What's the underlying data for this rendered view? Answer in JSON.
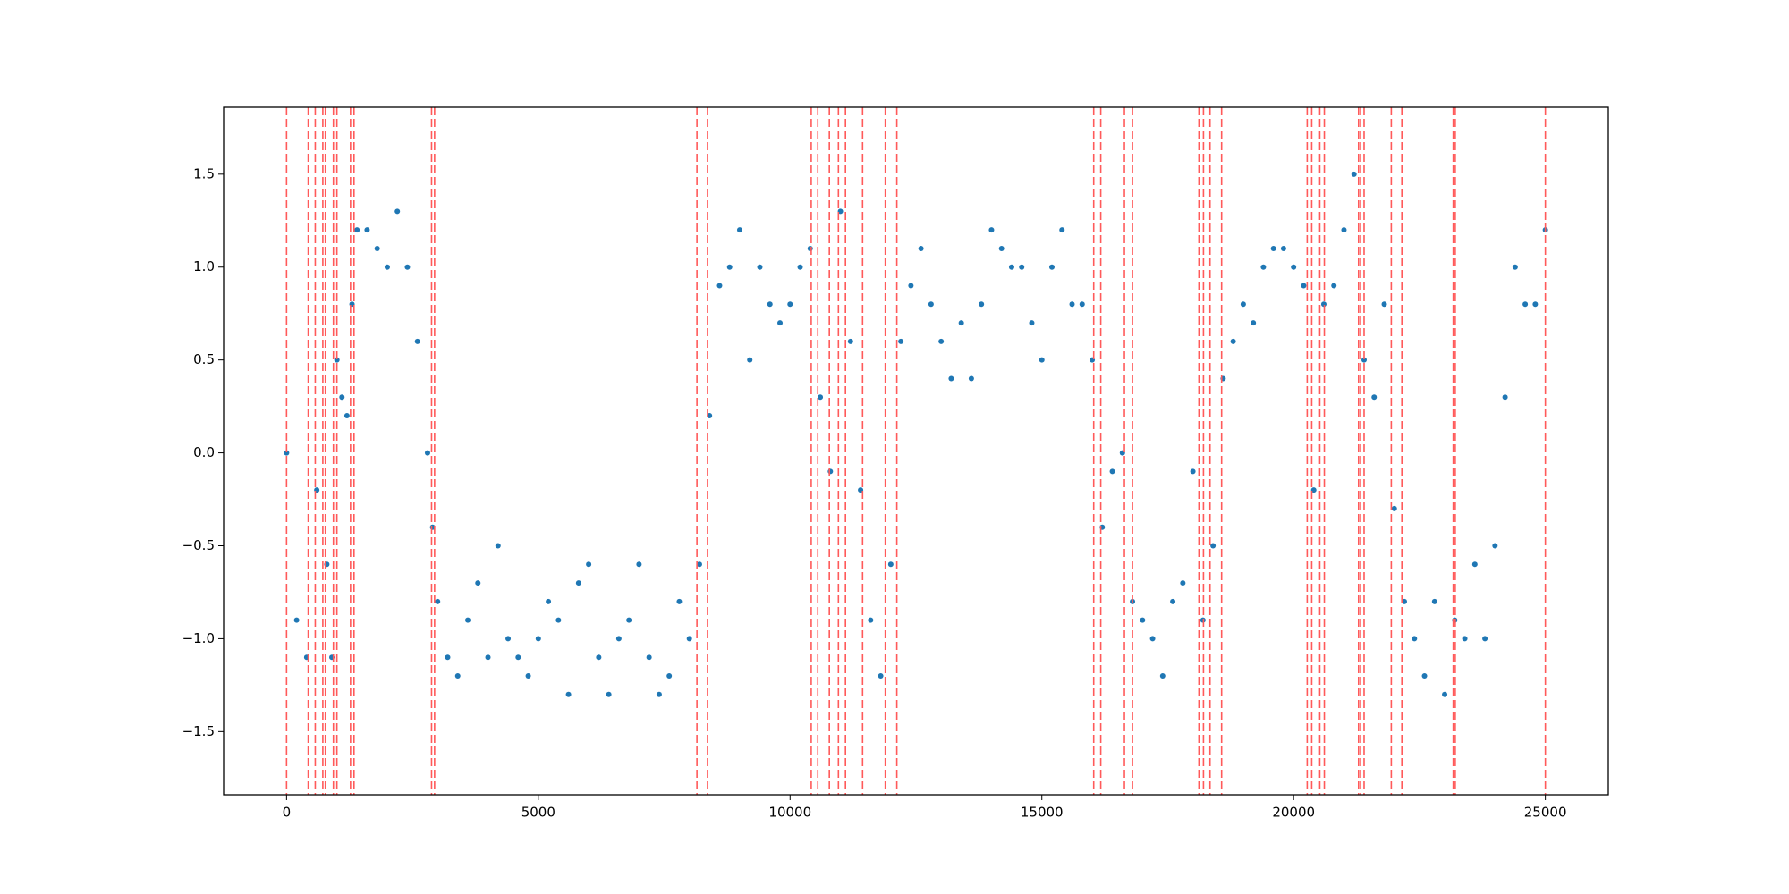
{
  "chart_data": {
    "type": "scatter",
    "x": [
      0,
      200,
      400,
      600,
      800,
      900,
      1000,
      1100,
      1200,
      1300,
      1400,
      1600,
      1800,
      2000,
      2200,
      2400,
      2600,
      2800,
      2900,
      3000,
      3200,
      3400,
      3600,
      3800,
      4000,
      4200,
      4400,
      4600,
      4800,
      5000,
      5200,
      5400,
      5600,
      5800,
      6000,
      6200,
      6400,
      6600,
      6800,
      7000,
      7200,
      7400,
      7600,
      7800,
      8000,
      8200,
      8400,
      8600,
      8800,
      9000,
      9200,
      9400,
      9600,
      9800,
      10000,
      10200,
      10400,
      10600,
      10800,
      11000,
      11200,
      11400,
      11600,
      11800,
      12000,
      12200,
      12400,
      12600,
      12800,
      13000,
      13200,
      13400,
      13600,
      13800,
      14000,
      14200,
      14400,
      14600,
      14800,
      15000,
      15200,
      15400,
      15600,
      15800,
      16000,
      16200,
      16400,
      16600,
      16800,
      17000,
      17200,
      17400,
      17600,
      17800,
      18000,
      18200,
      18400,
      18600,
      18800,
      19000,
      19200,
      19400,
      19600,
      19800,
      20000,
      20200,
      20400,
      20600,
      20800,
      21000,
      21200,
      21400,
      21600,
      21800,
      22000,
      22200,
      22400,
      22600,
      22800,
      23000,
      23200,
      23400,
      23600,
      23800,
      24000,
      24200,
      24400,
      24600,
      24800,
      25000
    ],
    "series": [
      {
        "color": "#1f77b4",
        "values": [
          0.0,
          -0.9,
          -1.1,
          -0.2,
          -0.6,
          -1.1,
          0.5,
          0.3,
          0.2,
          0.8,
          1.2,
          1.2,
          1.1,
          1.0,
          1.3,
          1.0,
          0.6,
          0.0,
          -0.4,
          -0.8,
          -1.1,
          -1.2,
          -0.9,
          -0.7,
          -1.1,
          -0.5,
          -1.0,
          -1.1,
          -1.2,
          -1.0,
          -0.8,
          -0.9,
          -1.3,
          -0.7,
          -0.6,
          -1.1,
          -1.3,
          -1.0,
          -0.9,
          -0.6,
          -1.1,
          -1.3,
          -1.2,
          -0.8,
          -1.0,
          -0.6,
          0.2,
          0.9,
          1.0,
          1.2,
          0.5,
          1.0,
          0.8,
          0.7,
          0.8,
          1.0,
          1.1,
          0.3,
          -0.1,
          1.3,
          0.6,
          -0.2,
          -0.9,
          -1.2,
          -0.6,
          0.6,
          0.9,
          1.1,
          0.8,
          0.6,
          0.4,
          0.7,
          0.4,
          0.8,
          1.2,
          1.1,
          1.0,
          1.0,
          0.7,
          0.5,
          1.0,
          1.2,
          0.8,
          0.8,
          0.5,
          -0.4,
          -0.1,
          0.0,
          -0.8,
          -0.9,
          -1.0,
          -1.2,
          -0.8,
          -0.7,
          -0.1,
          -0.9,
          -0.5,
          0.4,
          0.6,
          0.8,
          0.7,
          1.0,
          1.1,
          1.1,
          1.0,
          0.9,
          -0.2,
          0.8,
          0.9,
          1.2,
          1.5,
          0.5,
          0.3,
          0.8,
          -0.3,
          -0.8,
          -1.0,
          -1.2,
          -0.8,
          -1.3,
          -0.9,
          -1.0,
          -0.6,
          -1.0,
          -0.5,
          0.3,
          1.0,
          0.8,
          0.8,
          1.2
        ]
      }
    ],
    "vlines": {
      "color": "#ff5a5a",
      "x": [
        0,
        430,
        570,
        720,
        770,
        930,
        1000,
        1270,
        1340,
        2880,
        2940,
        8150,
        8360,
        10420,
        10550,
        10780,
        10960,
        11100,
        11440,
        11890,
        12120,
        16030,
        16170,
        16640,
        16800,
        18120,
        18210,
        18340,
        18570,
        20270,
        20360,
        20520,
        20610,
        21290,
        21330,
        21400,
        21940,
        22150,
        23170,
        23210,
        25000
      ]
    },
    "xlim": [
      -1250,
      26250
    ],
    "ylim": [
      -1.84,
      1.86
    ],
    "xticks": [
      0,
      5000,
      10000,
      15000,
      20000,
      25000
    ],
    "yticks": [
      {
        "value": -1.5,
        "label": "−1.5"
      },
      {
        "value": -1.0,
        "label": "−1.0"
      },
      {
        "value": -0.5,
        "label": "−0.5"
      },
      {
        "value": 0,
        "label": "0.0"
      },
      0.5,
      {
        "value": 1.0,
        "label": "1.0"
      },
      1.5
    ]
  }
}
